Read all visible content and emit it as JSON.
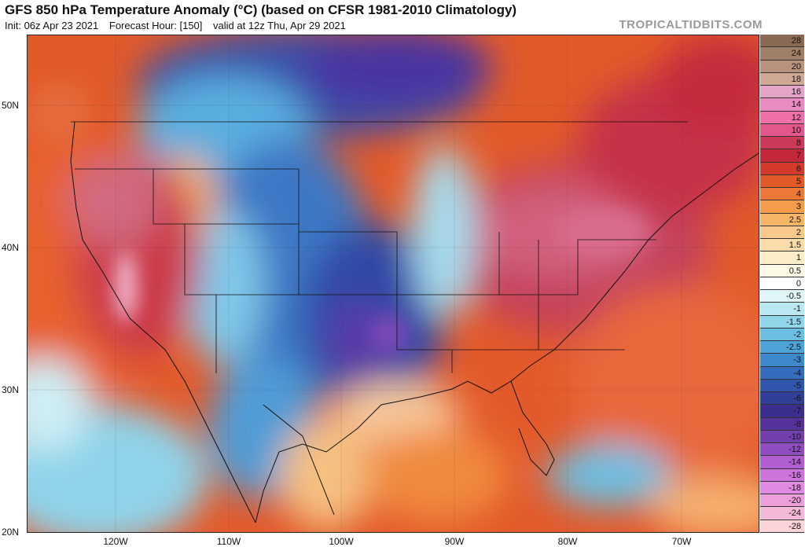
{
  "header": {
    "title": "GFS 850 hPa Temperature Anomaly (°C) (based on CFSR 1981-2010 Climatology)",
    "init": "Init: 06z Apr 23 2021",
    "forecast_hour": "Forecast Hour: [150]",
    "valid": "valid at 12z Thu, Apr 29 2021",
    "watermark": "TROPICALTIDBITS.COM"
  },
  "map": {
    "lat_labels": [
      "50N",
      "40N",
      "30N",
      "20N"
    ],
    "lon_labels": [
      "120W",
      "110W",
      "100W",
      "90W",
      "80W",
      "70W"
    ]
  },
  "colorbar": {
    "levels": [
      {
        "label": "28",
        "color": "#8a6a55"
      },
      {
        "label": "24",
        "color": "#a07f68"
      },
      {
        "label": "20",
        "color": "#b8927c"
      },
      {
        "label": "18",
        "color": "#cfa896"
      },
      {
        "label": "16",
        "color": "#e3a4c8"
      },
      {
        "label": "14",
        "color": "#e98ac0"
      },
      {
        "label": "12",
        "color": "#f06fa8"
      },
      {
        "label": "10",
        "color": "#e2588b"
      },
      {
        "label": "8",
        "color": "#cc3a5a"
      },
      {
        "label": "7",
        "color": "#c5273a"
      },
      {
        "label": "6",
        "color": "#d43a2c"
      },
      {
        "label": "5",
        "color": "#e35a2a"
      },
      {
        "label": "4",
        "color": "#ec7838"
      },
      {
        "label": "3",
        "color": "#f39c4c"
      },
      {
        "label": "2.5",
        "color": "#f6b567"
      },
      {
        "label": "2",
        "color": "#f8c98a"
      },
      {
        "label": "1.5",
        "color": "#fadcaa"
      },
      {
        "label": "1",
        "color": "#fcecc8"
      },
      {
        "label": "0.5",
        "color": "#fef8e6"
      },
      {
        "label": "0",
        "color": "#ffffff"
      },
      {
        "label": "-0.5",
        "color": "#dff5f8"
      },
      {
        "label": "-1",
        "color": "#b9e8f0"
      },
      {
        "label": "-1.5",
        "color": "#90d6ea"
      },
      {
        "label": "-2",
        "color": "#6cbfe2"
      },
      {
        "label": "-2.5",
        "color": "#4ea4d8"
      },
      {
        "label": "-3",
        "color": "#3e88cc"
      },
      {
        "label": "-4",
        "color": "#346dbe"
      },
      {
        "label": "-5",
        "color": "#2f55ad"
      },
      {
        "label": "-6",
        "color": "#323f99"
      },
      {
        "label": "-7",
        "color": "#3b2f8d"
      },
      {
        "label": "-8",
        "color": "#55339b"
      },
      {
        "label": "-10",
        "color": "#7240ad"
      },
      {
        "label": "-12",
        "color": "#8f4dc0"
      },
      {
        "label": "-14",
        "color": "#b05fd0"
      },
      {
        "label": "-16",
        "color": "#cc74dc"
      },
      {
        "label": "-18",
        "color": "#e08ae2"
      },
      {
        "label": "-20",
        "color": "#eba0dc"
      },
      {
        "label": "-24",
        "color": "#f4b9d6"
      },
      {
        "label": "-28",
        "color": "#fbd4d8"
      }
    ]
  }
}
